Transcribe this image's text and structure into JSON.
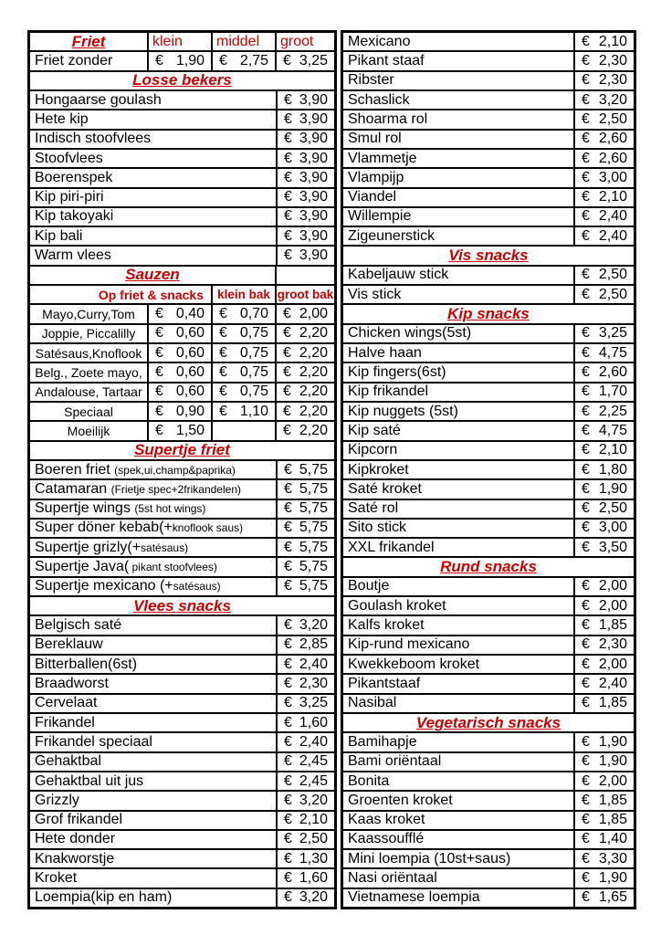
{
  "currency": "€",
  "colors": {
    "red": "#cc0000",
    "border": "#000000",
    "background": "#ffffff",
    "text": "#000000"
  },
  "left_table": {
    "rows": [
      {
        "type": "cols4_header",
        "title": "Friet",
        "cols": [
          "klein",
          "middel",
          "groot"
        ]
      },
      {
        "type": "item4",
        "name": "Friet zonder",
        "prices": [
          "1,90",
          "2,75",
          "3,25"
        ]
      },
      {
        "type": "section",
        "title": "Losse bekers"
      },
      {
        "type": "item",
        "name": "Hongaarse goulash",
        "price": "3,90"
      },
      {
        "type": "item",
        "name": "Hete kip",
        "price": "3,90"
      },
      {
        "type": "item",
        "name": "Indisch stoofvlees",
        "price": "3,90"
      },
      {
        "type": "item",
        "name": "Stoofvlees",
        "price": "3,90"
      },
      {
        "type": "item",
        "name": "Boerenspek",
        "price": "3,90"
      },
      {
        "type": "item",
        "name": "Kip piri-piri",
        "price": "3,90"
      },
      {
        "type": "item",
        "name": "Kip takoyaki",
        "price": "3,90"
      },
      {
        "type": "item",
        "name": "Kip bali",
        "price": "3,90"
      },
      {
        "type": "item",
        "name": "Warm vlees",
        "price": "3,90"
      },
      {
        "type": "section_cell",
        "title": "Sauzen"
      },
      {
        "type": "sauce_header",
        "label": "Op friet & snacks",
        "cols": [
          "klein bak",
          "groot bak"
        ]
      },
      {
        "type": "sauce4",
        "name": "Mayo,Curry,Tom",
        "prices": [
          "0,40",
          "0,70",
          "2,00"
        ]
      },
      {
        "type": "sauce4",
        "name": "Joppie, Piccalilly",
        "prices": [
          "0,60",
          "0,75",
          "2,20"
        ]
      },
      {
        "type": "sauce4",
        "name": "Satésaus,Knoflook",
        "prices": [
          "0,60",
          "0,75",
          "2,20"
        ]
      },
      {
        "type": "sauce4",
        "name": "Belg., Zoete mayo,",
        "prices": [
          "0,60",
          "0,75",
          "2,20"
        ]
      },
      {
        "type": "sauce4",
        "name": "Andalouse, Tartaar",
        "prices": [
          "0,60",
          "0,75",
          "2,20"
        ]
      },
      {
        "type": "sauce4",
        "name": "Speciaal",
        "prices": [
          "0,90",
          "1,10",
          "2,20"
        ]
      },
      {
        "type": "sauce4",
        "name": "Moeilijk",
        "prices": [
          "1,50",
          "",
          "2,20"
        ]
      },
      {
        "type": "section",
        "title": "Supertje friet"
      },
      {
        "type": "item",
        "name": "Boeren friet ",
        "note": "(spek,ui,champ&paprika)",
        "price": "5,75"
      },
      {
        "type": "item",
        "name": "Catamaran ",
        "note": "(Frietje spec+2frikandelen)",
        "price": "5,75"
      },
      {
        "type": "item",
        "name": "Supertje wings ",
        "note": "(5st hot wings)",
        "price": "5,75"
      },
      {
        "type": "item",
        "name": "Super döner kebab(+",
        "note": "knoflook saus)",
        "price": "5,75"
      },
      {
        "type": "item",
        "name": "Supertje grizly(+",
        "note": "satésaus)",
        "price": "5,75"
      },
      {
        "type": "item",
        "name": "Supertje Java(",
        "note": " pikant stoofvlees)",
        "price": "5,75"
      },
      {
        "type": "item",
        "name": "Supertje mexicano (+",
        "note": "satésaus)",
        "price": "5,75"
      },
      {
        "type": "section",
        "title": "Vlees snacks"
      },
      {
        "type": "item",
        "name": "Belgisch saté",
        "price": "3,20"
      },
      {
        "type": "item",
        "name": "Bereklauw",
        "price": "2,85"
      },
      {
        "type": "item",
        "name": "Bitterballen(6st)",
        "price": "2,40"
      },
      {
        "type": "item",
        "name": "Braadworst",
        "price": "2,30"
      },
      {
        "type": "item",
        "name": "Cervelaat",
        "price": "3,25"
      },
      {
        "type": "item",
        "name": "Frikandel",
        "price": "1,60"
      },
      {
        "type": "item",
        "name": "Frikandel speciaal",
        "price": "2,40"
      },
      {
        "type": "item",
        "name": "Gehaktbal",
        "price": "2,45"
      },
      {
        "type": "item",
        "name": "Gehaktbal uit jus",
        "price": "2,45"
      },
      {
        "type": "item",
        "name": "Grizzly",
        "price": "3,20"
      },
      {
        "type": "item",
        "name": "Grof frikandel",
        "price": "2,10"
      },
      {
        "type": "item",
        "name": "Hete donder",
        "price": "2,50"
      },
      {
        "type": "item",
        "name": "Knakworstje",
        "price": "1,30"
      },
      {
        "type": "item",
        "name": "Kroket",
        "price": "1,60"
      },
      {
        "type": "item",
        "name": "Loempia(kip en ham)",
        "price": "3,20"
      }
    ]
  },
  "right_table": {
    "rows": [
      {
        "type": "item",
        "name": "Mexicano",
        "price": "2,10"
      },
      {
        "type": "item",
        "name": "Pikant staaf",
        "price": "2,30"
      },
      {
        "type": "item",
        "name": "Ribster",
        "price": "2,30"
      },
      {
        "type": "item",
        "name": "Schaslick",
        "price": "3,20"
      },
      {
        "type": "item",
        "name": "Shoarma rol",
        "price": "2,50"
      },
      {
        "type": "item",
        "name": "Smul rol",
        "price": "2,60"
      },
      {
        "type": "item",
        "name": "Vlammetje",
        "price": "2,60"
      },
      {
        "type": "item",
        "name": "Vlampijp",
        "price": "3,00"
      },
      {
        "type": "item",
        "name": "Viandel",
        "price": "2,10"
      },
      {
        "type": "item",
        "name": "Willempie",
        "price": "2,40"
      },
      {
        "type": "item",
        "name": "Zigeunerstick",
        "price": "2,40"
      },
      {
        "type": "section",
        "title": "Vis snacks"
      },
      {
        "type": "item",
        "name": "Kabeljauw stick",
        "price": "2,50"
      },
      {
        "type": "item",
        "name": "Vis stick",
        "price": "2,50"
      },
      {
        "type": "section",
        "title": "Kip snacks"
      },
      {
        "type": "item",
        "name": "Chicken wings(5st)",
        "price": "3,25"
      },
      {
        "type": "item",
        "name": "Halve haan",
        "price": "4,75"
      },
      {
        "type": "item",
        "name": "Kip fingers(6st)",
        "price": "2,60"
      },
      {
        "type": "item",
        "name": "Kip frikandel",
        "price": "1,70"
      },
      {
        "type": "item",
        "name": "Kip nuggets (5st)",
        "price": "2,25"
      },
      {
        "type": "item",
        "name": "Kip saté",
        "price": "4,75"
      },
      {
        "type": "item",
        "name": "Kipcorn",
        "price": "2,10"
      },
      {
        "type": "item",
        "name": "Kipkroket",
        "price": "1,80"
      },
      {
        "type": "item",
        "name": "Saté kroket",
        "price": "1,90"
      },
      {
        "type": "item",
        "name": "Saté rol",
        "price": "2,50"
      },
      {
        "type": "item",
        "name": "Sito stick",
        "price": "3,00"
      },
      {
        "type": "item",
        "name": "XXL frikandel",
        "price": "3,50"
      },
      {
        "type": "section",
        "title": "Rund snacks"
      },
      {
        "type": "item",
        "name": "Boutje",
        "price": "2,00"
      },
      {
        "type": "item",
        "name": "Goulash kroket",
        "price": "2,00"
      },
      {
        "type": "item",
        "name": "Kalfs kroket",
        "price": "1,85"
      },
      {
        "type": "item",
        "name": "Kip-rund mexicano",
        "price": "2,30"
      },
      {
        "type": "item",
        "name": "Kwekkeboom kroket",
        "price": "2,00"
      },
      {
        "type": "item",
        "name": "Pikantstaaf",
        "price": "2,40"
      },
      {
        "type": "item",
        "name": "Nasibal",
        "price": "1,85"
      },
      {
        "type": "section",
        "title": "Vegetarisch snacks"
      },
      {
        "type": "item",
        "name": "Bamihapje",
        "price": "1,90"
      },
      {
        "type": "item",
        "name": "Bami oriëntaal",
        "price": "1,90"
      },
      {
        "type": "item",
        "name": "Bonita",
        "price": "2,00"
      },
      {
        "type": "item",
        "name": "Groenten kroket",
        "price": "1,85"
      },
      {
        "type": "item",
        "name": "Kaas kroket",
        "price": "1,85"
      },
      {
        "type": "item",
        "name": "Kaassoufflé",
        "price": "1,40"
      },
      {
        "type": "item",
        "name": "Mini loempia (10st+saus)",
        "price": "3,30"
      },
      {
        "type": "item",
        "name": "Nasi oriëntaal",
        "price": "1,90"
      },
      {
        "type": "item",
        "name": "Vietnamese loempia",
        "price": "1,65"
      }
    ]
  }
}
